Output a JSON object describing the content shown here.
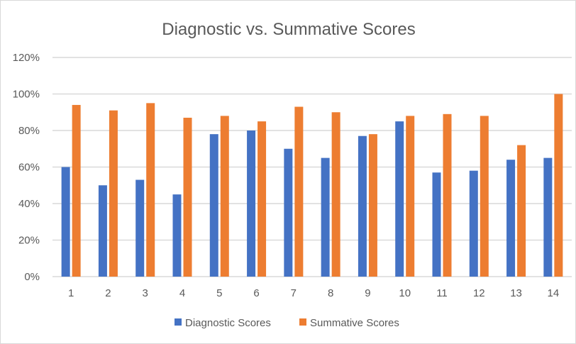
{
  "chart_data": {
    "type": "bar",
    "title": "Diagnostic vs. Summative Scores",
    "xlabel": "",
    "ylabel": "",
    "categories": [
      "1",
      "2",
      "3",
      "4",
      "5",
      "6",
      "7",
      "8",
      "9",
      "10",
      "11",
      "12",
      "13",
      "14"
    ],
    "series": [
      {
        "name": "Diagnostic Scores",
        "color": "#4472C4",
        "values": [
          60,
          50,
          53,
          45,
          78,
          80,
          70,
          65,
          77,
          85,
          57,
          58,
          64,
          65
        ]
      },
      {
        "name": "Summative Scores",
        "color": "#ED7D31",
        "values": [
          94,
          91,
          95,
          87,
          88,
          85,
          93,
          90,
          78,
          88,
          89,
          88,
          72,
          100
        ]
      }
    ],
    "ylim": [
      0,
      120
    ],
    "yticks": [
      "0%",
      "20%",
      "40%",
      "60%",
      "80%",
      "100%",
      "120%"
    ],
    "grid": true,
    "legend_position": "bottom"
  }
}
